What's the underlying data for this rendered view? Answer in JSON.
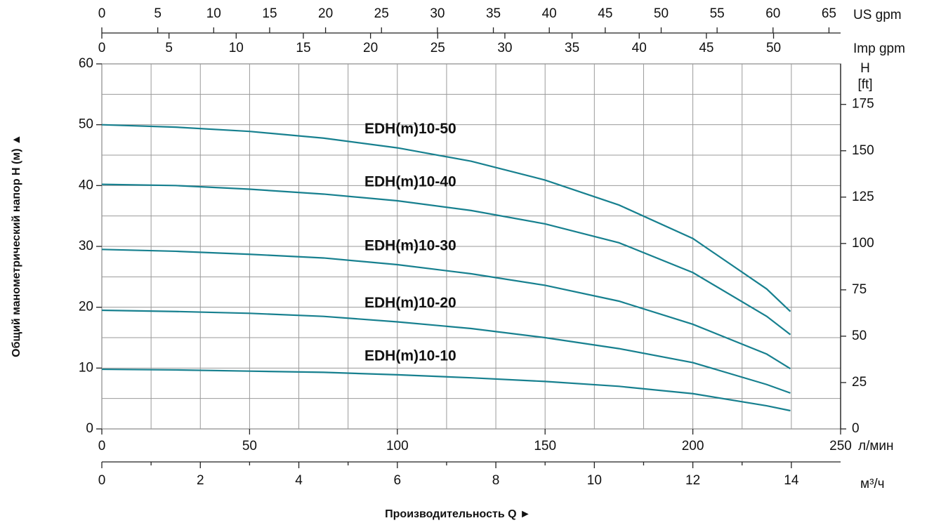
{
  "chart_data": {
    "type": "line",
    "x_title": "Производительность Q  ►",
    "y_title": "Общий манометрический напор H (м)  ▲",
    "x": [
      0,
      25,
      50,
      75,
      100,
      125,
      150,
      175,
      200,
      225,
      233
    ],
    "series": [
      {
        "name": "EDH(m)10-50",
        "color": "#17808f",
        "values": [
          50,
          49.6,
          48.9,
          47.8,
          46.2,
          44.0,
          40.9,
          36.8,
          31.3,
          23.0,
          19.3
        ]
      },
      {
        "name": "EDH(m)10-40",
        "color": "#17808f",
        "values": [
          40.2,
          40.0,
          39.4,
          38.6,
          37.5,
          35.9,
          33.7,
          30.6,
          25.7,
          18.5,
          15.5
        ]
      },
      {
        "name": "EDH(m)10-30",
        "color": "#17808f",
        "values": [
          29.5,
          29.2,
          28.7,
          28.1,
          27.0,
          25.5,
          23.6,
          21.0,
          17.2,
          12.3,
          9.9
        ]
      },
      {
        "name": "EDH(m)10-20",
        "color": "#17808f",
        "values": [
          19.5,
          19.3,
          19.0,
          18.5,
          17.6,
          16.5,
          15.0,
          13.2,
          10.9,
          7.3,
          5.9
        ]
      },
      {
        "name": "EDH(m)10-10",
        "color": "#17808f",
        "values": [
          9.8,
          9.7,
          9.5,
          9.3,
          8.9,
          8.4,
          7.8,
          7.0,
          5.8,
          3.8,
          3.0
        ]
      }
    ],
    "xlim": [
      0,
      250
    ],
    "xticks": [
      0,
      50,
      100,
      150,
      200,
      250
    ],
    "x_unit": "л/мин",
    "x2lim": [
      0,
      15
    ],
    "x2ticks": [
      0,
      2,
      4,
      6,
      8,
      10,
      12,
      14
    ],
    "x2minor": [
      1,
      3,
      5,
      7,
      9,
      11,
      13
    ],
    "x2_unit": "м³/ч",
    "x3lim": [
      0,
      66.04
    ],
    "x3ticks": [
      0,
      5,
      10,
      15,
      20,
      25,
      30,
      35,
      40,
      45,
      50,
      55,
      60,
      65
    ],
    "x3_unit": "US gpm",
    "x4lim": [
      0,
      54.99
    ],
    "x4ticks": [
      0,
      5,
      10,
      15,
      20,
      25,
      30,
      35,
      40,
      45,
      50
    ],
    "x4_unit": "Imp gpm",
    "ylim": [
      0,
      60
    ],
    "yticks": [
      0,
      10,
      20,
      30,
      40,
      50,
      60
    ],
    "yminor": [
      5,
      15,
      25,
      35,
      45,
      55
    ],
    "y2lim": [
      0,
      196.85
    ],
    "y2ticks": [
      0,
      25,
      50,
      75,
      100,
      125,
      150,
      175
    ],
    "y2_unit": "H",
    "y2_unit2": "[ft]",
    "grid": true
  }
}
